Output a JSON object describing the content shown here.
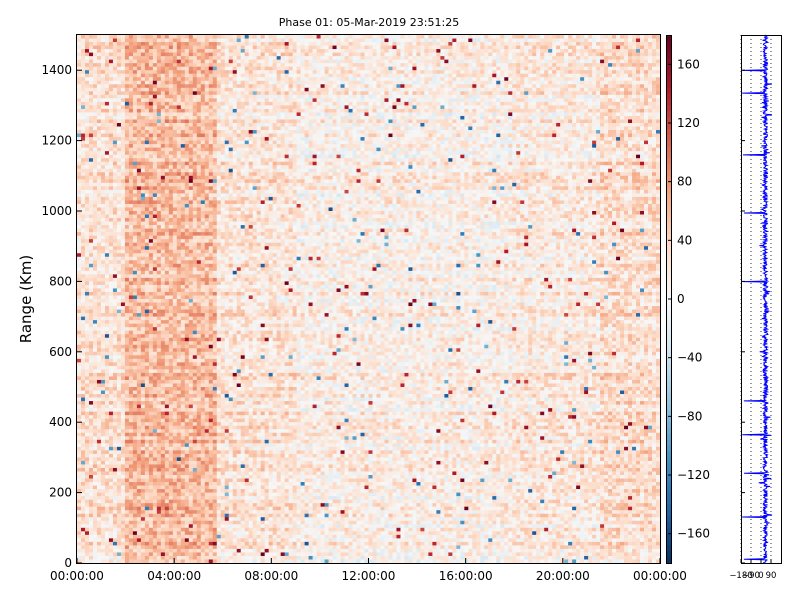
{
  "chart_data": [
    {
      "type": "heatmap",
      "title": "Phase 01: 05-Mar-2019 23:51:25",
      "xlabel": "",
      "ylabel": "Range (Km)",
      "x_ticks": [
        "00:00:00",
        "04:00:00",
        "08:00:00",
        "12:00:00",
        "16:00:00",
        "20:00:00",
        "00:00:00"
      ],
      "x_range_hours": [
        0,
        24
      ],
      "y_ticks": [
        0,
        200,
        400,
        600,
        800,
        1000,
        1200,
        1400
      ],
      "ylim": [
        0,
        1500
      ],
      "value_range": [
        -180,
        180
      ],
      "colormap": "RdBu_r",
      "colorbar_ticks": [
        160,
        120,
        80,
        40,
        0,
        -40,
        -80,
        -120,
        -160
      ],
      "colorbar_tick_labels": [
        "160",
        "120",
        "80",
        "40",
        "0",
        "−40",
        "−80",
        "−120",
        "−160"
      ],
      "colorbar_position": "right",
      "mean_profile_hours": [
        [
          0,
          2,
          25
        ],
        [
          2,
          5.8,
          55
        ],
        [
          5.8,
          9,
          22
        ],
        [
          9,
          18,
          12
        ],
        [
          18,
          21.5,
          18
        ],
        [
          21.5,
          24,
          30
        ]
      ],
      "grid": false
    },
    {
      "type": "line",
      "xlabel": "",
      "ylabel": "",
      "x_ticks": [
        -180,
        -90,
        0,
        90
      ],
      "x_tick_labels": [
        "−180",
        "−90",
        "0",
        "90"
      ],
      "xlim": [
        -180,
        180
      ],
      "ylim": [
        0,
        1500
      ],
      "color": "#0000ff",
      "grid": "vertical dotted",
      "spike_ranges": [
        10,
        130,
        255,
        365,
        460,
        800,
        995,
        1160,
        1335,
        1400
      ]
    }
  ]
}
